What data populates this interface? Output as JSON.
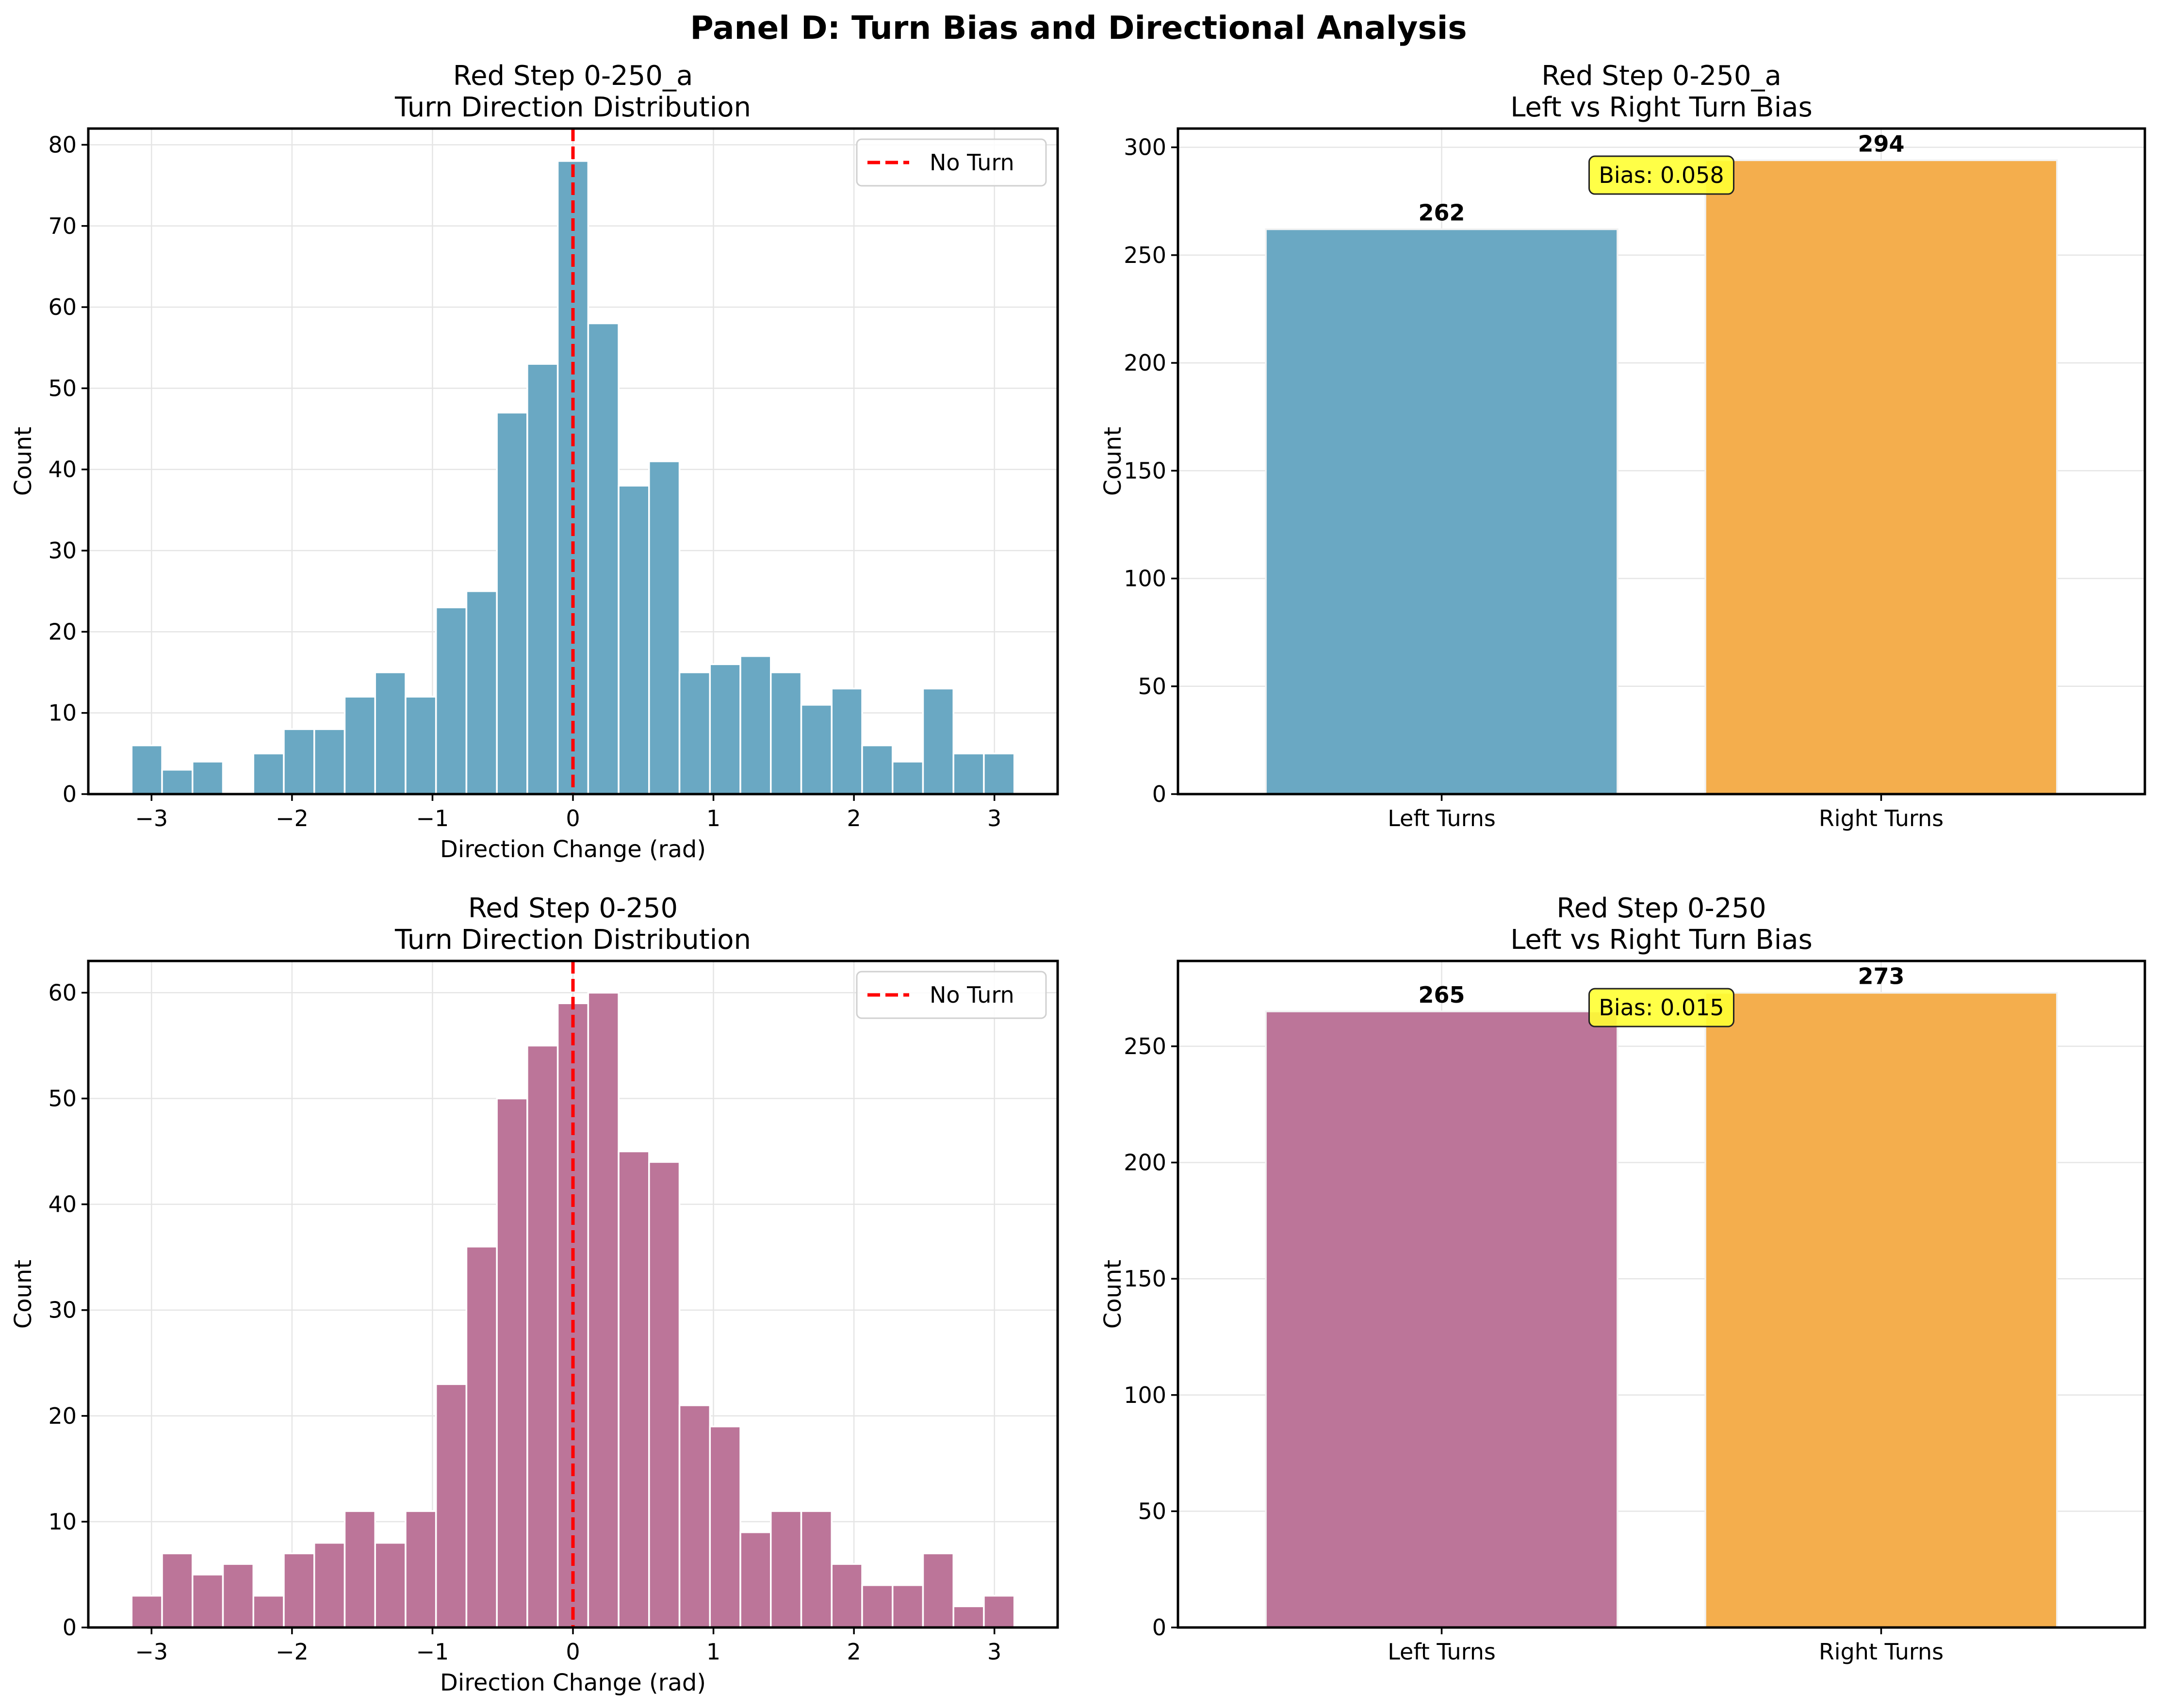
{
  "figure_title": "Panel D: Turn Bias and Directional Analysis",
  "colors": {
    "hist_top": "#6aa8c3",
    "hist_bottom": "#bc7599",
    "right_turns": "#f4ae4d",
    "no_turn_line": "#ff0000",
    "bias_box": "#ffff33",
    "bar_edge": "#ffffff"
  },
  "chart_data": [
    {
      "type": "bar",
      "subtype": "histogram",
      "title": "Red Step 0-250_a\nTurn Direction Distribution",
      "xlabel": "Direction Change (rad)",
      "ylabel": "Count",
      "xlim": [
        -3.45,
        3.45
      ],
      "ylim": [
        0,
        82
      ],
      "xticks": [
        -3,
        -2,
        -1,
        0,
        1,
        2,
        3
      ],
      "xtick_labels": [
        "−3",
        "−2",
        "−1",
        "0",
        "1",
        "2",
        "3"
      ],
      "yticks": [
        0,
        10,
        20,
        30,
        40,
        50,
        60,
        70,
        80
      ],
      "bin_range": [
        -3.1416,
        3.1416
      ],
      "values": [
        6,
        3,
        4,
        0,
        5,
        8,
        8,
        12,
        15,
        12,
        23,
        25,
        47,
        53,
        78,
        58,
        38,
        41,
        15,
        16,
        17,
        15,
        11,
        13,
        6,
        4,
        13,
        5,
        5
      ],
      "vline": {
        "x": 0,
        "label": "No Turn"
      },
      "legend_position": "top-right",
      "grid": true,
      "color_key": "hist_top"
    },
    {
      "type": "bar",
      "title": "Red Step 0-250_a\nLeft vs Right Turn Bias",
      "xlabel": "",
      "ylabel": "Count",
      "categories": [
        "Left Turns",
        "Right Turns"
      ],
      "values": [
        262,
        294
      ],
      "value_labels": [
        "262",
        "294"
      ],
      "ylim": [
        0,
        308.7
      ],
      "yticks": [
        0,
        50,
        100,
        150,
        200,
        250,
        300
      ],
      "annotation": "Bias: 0.058",
      "grid": true,
      "color_keys": [
        "hist_top",
        "right_turns"
      ]
    },
    {
      "type": "bar",
      "subtype": "histogram",
      "title": "Red Step 0-250\nTurn Direction Distribution",
      "xlabel": "Direction Change (rad)",
      "ylabel": "Count",
      "xlim": [
        -3.45,
        3.45
      ],
      "ylim": [
        0,
        63
      ],
      "xticks": [
        -3,
        -2,
        -1,
        0,
        1,
        2,
        3
      ],
      "xtick_labels": [
        "−3",
        "−2",
        "−1",
        "0",
        "1",
        "2",
        "3"
      ],
      "yticks": [
        0,
        10,
        20,
        30,
        40,
        50,
        60
      ],
      "bin_range": [
        -3.1416,
        3.1416
      ],
      "values": [
        3,
        7,
        5,
        6,
        3,
        7,
        8,
        11,
        8,
        11,
        23,
        36,
        50,
        55,
        59,
        60,
        45,
        44,
        21,
        19,
        9,
        11,
        11,
        6,
        4,
        4,
        7,
        2,
        3
      ],
      "vline": {
        "x": 0,
        "label": "No Turn"
      },
      "legend_position": "top-right",
      "grid": true,
      "color_key": "hist_bottom"
    },
    {
      "type": "bar",
      "title": "Red Step 0-250\nLeft vs Right Turn Bias",
      "xlabel": "",
      "ylabel": "Count",
      "categories": [
        "Left Turns",
        "Right Turns"
      ],
      "values": [
        265,
        273
      ],
      "value_labels": [
        "265",
        "273"
      ],
      "ylim": [
        0,
        286.7
      ],
      "yticks": [
        0,
        50,
        100,
        150,
        200,
        250
      ],
      "annotation": "Bias: 0.015",
      "grid": true,
      "color_keys": [
        "hist_bottom",
        "right_turns"
      ]
    }
  ]
}
